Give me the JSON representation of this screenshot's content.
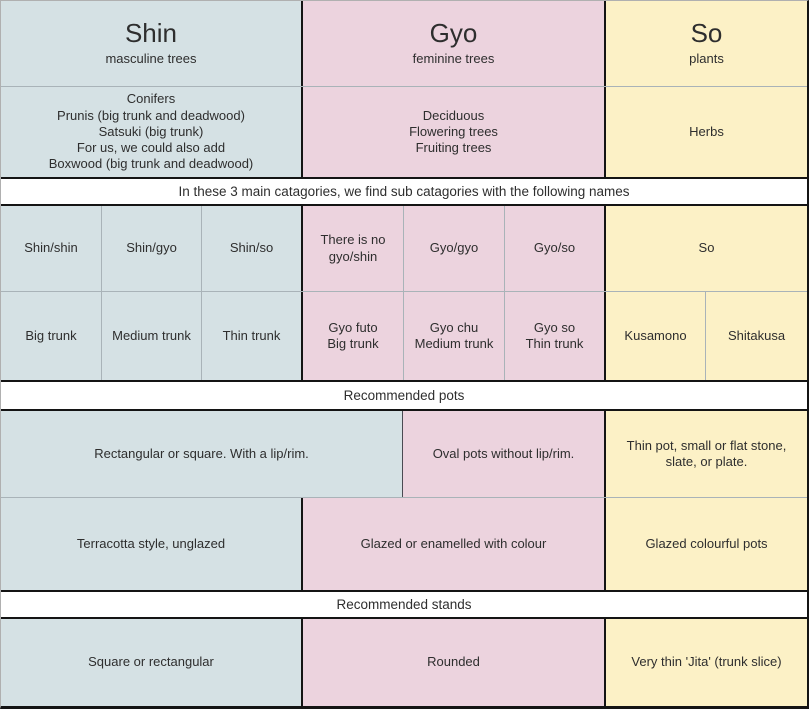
{
  "colors": {
    "shin_bg": "#d5e1e4",
    "gyo_bg": "#ecd3de",
    "so_bg": "#fcf1c6",
    "banner_bg": "#ffffff",
    "border_major": "#141414",
    "border_minor": "#a9b3b8",
    "text": "#2e2e2e"
  },
  "header": {
    "shin": {
      "title": "Shin",
      "subtitle": "masculine trees"
    },
    "gyo": {
      "title": "Gyo",
      "subtitle": "feminine trees"
    },
    "so": {
      "title": "So",
      "subtitle": "plants"
    }
  },
  "examples": {
    "shin": "Conifers\nPrunis (big trunk and deadwood)\nSatsuki (big trunk)\nFor us, we could also add\nBoxwood (big trunk and deadwood)",
    "gyo": "Deciduous\nFlowering trees\nFruiting trees",
    "so": "Herbs"
  },
  "banners": {
    "subcategories": "In these 3 main catagories, we find sub catagories with the following names",
    "pots": "Recommended pots",
    "stands": "Recommended stands"
  },
  "subcategories": {
    "names": {
      "shin_shin": "Shin/shin",
      "shin_gyo": "Shin/gyo",
      "shin_so": "Shin/so",
      "gyo_shin": "There is no\ngyo/shin",
      "gyo_gyo": "Gyo/gyo",
      "gyo_so": "Gyo/so",
      "so": "So"
    },
    "trunks": {
      "shin_big": "Big trunk",
      "shin_medium": "Medium trunk",
      "shin_thin": "Thin trunk",
      "gyo_futo": "Gyo futo\nBig trunk",
      "gyo_chu": "Gyo chu\nMedium trunk",
      "gyo_so": "Gyo so\nThin trunk",
      "kusamono": "Kusamono",
      "shitakusa": "Shitakusa"
    }
  },
  "pots": {
    "shin_shape": "Rectangular or square. With a lip/rim.",
    "gyo_shape": "Oval pots without lip/rim.",
    "so_shape": "Thin pot, small or flat stone,\nslate, or plate.",
    "shin_finish": "Terracotta style, unglazed",
    "gyo_finish": "Glazed or enamelled with colour",
    "so_finish": "Glazed colourful pots"
  },
  "stands": {
    "shin": "Square or rectangular",
    "gyo": "Rounded",
    "so": "Very thin 'Jita' (trunk slice)"
  }
}
